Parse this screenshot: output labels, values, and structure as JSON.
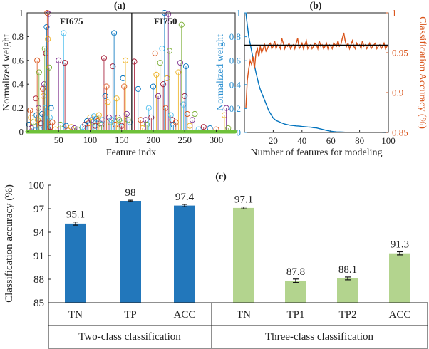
{
  "chart_data": [
    {
      "type": "scatter",
      "panel": "(a)",
      "subtype": "stem",
      "xlabel": "Feature indx",
      "ylabel": "Normalized weight",
      "xlim": [
        0,
        330
      ],
      "ylim": [
        0,
        1
      ],
      "xticks": [
        "50",
        "100",
        "150",
        "200",
        "250",
        "300"
      ],
      "yticks": [
        "0",
        "0.2",
        "0.4",
        "0.6",
        "0.8",
        "1"
      ],
      "divider_x": 166,
      "region_labels": [
        "FI675",
        "FI750"
      ],
      "series_colors": [
        "#0072bd",
        "#d95319",
        "#edb120",
        "#7e2f8e",
        "#77ac30",
        "#4dbeee",
        "#a2142f"
      ],
      "points": [
        [
          3,
          0.06
        ],
        [
          5,
          0.18
        ],
        [
          6,
          0.12
        ],
        [
          7,
          0.03
        ],
        [
          10,
          0.08
        ],
        [
          12,
          0.01
        ],
        [
          14,
          0.28
        ],
        [
          15,
          0.14
        ],
        [
          16,
          0.6
        ],
        [
          17,
          0.1
        ],
        [
          18,
          0.2
        ],
        [
          19,
          0.5
        ],
        [
          20,
          0.02
        ],
        [
          22,
          0.07
        ],
        [
          24,
          0.15
        ],
        [
          25,
          0.36
        ],
        [
          26,
          0.3
        ],
        [
          27,
          0.4
        ],
        [
          28,
          0.7
        ],
        [
          29,
          0.2
        ],
        [
          30,
          0.66
        ],
        [
          31,
          0.88
        ],
        [
          32,
          1.0
        ],
        [
          33,
          0.78
        ],
        [
          34,
          0.99
        ],
        [
          35,
          0.54
        ],
        [
          36,
          0.12
        ],
        [
          37,
          0.04
        ],
        [
          38,
          0.2
        ],
        [
          40,
          0.08
        ],
        [
          45,
          0.02
        ],
        [
          50,
          0.6
        ],
        [
          53,
          0.06
        ],
        [
          58,
          0.83
        ],
        [
          60,
          0.58
        ],
        [
          62,
          0.05
        ],
        [
          65,
          0.01
        ],
        [
          70,
          0.04
        ],
        [
          75,
          0.03
        ],
        [
          80,
          0.02
        ],
        [
          88,
          0.04
        ],
        [
          92,
          0.06
        ],
        [
          95,
          0.09
        ],
        [
          97,
          0.07
        ],
        [
          100,
          0.12
        ],
        [
          102,
          0.1
        ],
        [
          104,
          0.08
        ],
        [
          106,
          0.13
        ],
        [
          108,
          0.05
        ],
        [
          110,
          0.11
        ],
        [
          112,
          0.09
        ],
        [
          114,
          0.14
        ],
        [
          116,
          0.07
        ],
        [
          118,
          0.06
        ],
        [
          120,
          0.1
        ],
        [
          122,
          0.62
        ],
        [
          124,
          0.3
        ],
        [
          126,
          0.38
        ],
        [
          128,
          0.25
        ],
        [
          130,
          0.12
        ],
        [
          132,
          0.08
        ],
        [
          134,
          0.1
        ],
        [
          136,
          0.55
        ],
        [
          138,
          0.83
        ],
        [
          140,
          0.06
        ],
        [
          142,
          0.28
        ],
        [
          144,
          0.12
        ],
        [
          146,
          0.1
        ],
        [
          148,
          0.08
        ],
        [
          150,
          0.05
        ],
        [
          152,
          0.45
        ],
        [
          154,
          0.38
        ],
        [
          156,
          0.6
        ],
        [
          158,
          0.15
        ],
        [
          160,
          0.1
        ],
        [
          163,
          0.08
        ],
        [
          170,
          0.59
        ],
        [
          176,
          0.36
        ],
        [
          180,
          0.1
        ],
        [
          183,
          0.03
        ],
        [
          188,
          0.1
        ],
        [
          190,
          0.06
        ],
        [
          193,
          0.2
        ],
        [
          197,
          0.12
        ],
        [
          200,
          0.38
        ],
        [
          203,
          0.66
        ],
        [
          205,
          0.48
        ],
        [
          208,
          0.3
        ],
        [
          211,
          0.58
        ],
        [
          214,
          0.7
        ],
        [
          216,
          0.4
        ],
        [
          218,
          1.0
        ],
        [
          220,
          0.2
        ],
        [
          222,
          0.45
        ],
        [
          224,
          0.99
        ],
        [
          226,
          0.68
        ],
        [
          228,
          0.14
        ],
        [
          230,
          0.1
        ],
        [
          232,
          0.06
        ],
        [
          236,
          0.08
        ],
        [
          240,
          0.5
        ],
        [
          243,
          0.58
        ],
        [
          245,
          0.9
        ],
        [
          248,
          0.23
        ],
        [
          250,
          0.3
        ],
        [
          252,
          0.55
        ],
        [
          254,
          0.15
        ],
        [
          258,
          0.05
        ],
        [
          262,
          0.1
        ],
        [
          266,
          0.15
        ],
        [
          272,
          0.02
        ],
        [
          280,
          0.04
        ],
        [
          290,
          0.03
        ],
        [
          300,
          0.02
        ],
        [
          313,
          0.14
        ],
        [
          316,
          0.2
        ],
        [
          319,
          0.03
        ]
      ]
    },
    {
      "type": "line",
      "panel": "(b)",
      "xlabel": "Number of features for modeling",
      "ylabel_left": "Normalized weight",
      "ylabel_right": "Classification Accuracy (%)",
      "xlim": [
        0,
        100
      ],
      "ylim_left": [
        0,
        1
      ],
      "ylim_right": [
        0.85,
        1.0
      ],
      "xticks": [
        "20",
        "40",
        "60",
        "80",
        "100"
      ],
      "yticks_left": [
        "0",
        "0.2",
        "0.4",
        "0.6",
        "0.8",
        "1"
      ],
      "yticks_right": [
        "0.85",
        "0.9",
        "0.95",
        "1"
      ],
      "reference_line_left": 0.73,
      "series": [
        {
          "name": "Normalized weight",
          "axis": "left",
          "color": "#0072bd",
          "x": [
            1,
            2,
            3,
            4,
            5,
            6,
            7,
            8,
            9,
            10,
            11,
            12,
            13,
            14,
            15,
            16,
            17,
            18,
            19,
            20,
            22,
            24,
            26,
            28,
            30,
            32,
            34,
            36,
            38,
            40,
            42,
            44,
            46,
            48,
            50,
            52,
            54,
            56,
            58,
            60,
            62,
            64,
            66,
            68,
            70,
            75,
            80,
            85,
            90,
            95,
            100
          ],
          "y": [
            1.0,
            0.9,
            0.8,
            0.74,
            0.68,
            0.62,
            0.56,
            0.5,
            0.45,
            0.4,
            0.36,
            0.33,
            0.3,
            0.27,
            0.24,
            0.21,
            0.18,
            0.16,
            0.14,
            0.12,
            0.1,
            0.09,
            0.08,
            0.07,
            0.065,
            0.06,
            0.058,
            0.055,
            0.053,
            0.05,
            0.048,
            0.046,
            0.044,
            0.04,
            0.038,
            0.032,
            0.026,
            0.02,
            0.014,
            0.01,
            0.007,
            0.005,
            0.004,
            0.003,
            0.002,
            0.002,
            0.001,
            0.001,
            0.001,
            0.001,
            0.0
          ]
        },
        {
          "name": "Classification Accuracy",
          "axis": "right",
          "color": "#d95319",
          "x": [
            1,
            2,
            3,
            4,
            5,
            6,
            7,
            8,
            9,
            10,
            11,
            12,
            13,
            14,
            15,
            16,
            17,
            18,
            19,
            20,
            21,
            22,
            23,
            24,
            25,
            26,
            27,
            28,
            29,
            30,
            31,
            32,
            33,
            34,
            35,
            36,
            37,
            38,
            39,
            40,
            41,
            42,
            43,
            44,
            45,
            46,
            47,
            48,
            49,
            50,
            51,
            52,
            53,
            54,
            55,
            56,
            57,
            58,
            59,
            60,
            61,
            62,
            63,
            64,
            65,
            66,
            67,
            68,
            69,
            70,
            71,
            72,
            73,
            74,
            75,
            76,
            77,
            78,
            79,
            80,
            81,
            82,
            83,
            84,
            85,
            86,
            87,
            88,
            89,
            90,
            91,
            92,
            93,
            94,
            95,
            96,
            97,
            98,
            99,
            100
          ],
          "y": [
            0.88,
            0.915,
            0.93,
            0.94,
            0.935,
            0.945,
            0.93,
            0.95,
            0.955,
            0.945,
            0.958,
            0.95,
            0.955,
            0.96,
            0.952,
            0.955,
            0.96,
            0.962,
            0.955,
            0.958,
            0.965,
            0.955,
            0.96,
            0.958,
            0.955,
            0.968,
            0.962,
            0.955,
            0.96,
            0.958,
            0.962,
            0.955,
            0.958,
            0.96,
            0.955,
            0.962,
            0.968,
            0.955,
            0.958,
            0.962,
            0.955,
            0.96,
            0.965,
            0.955,
            0.958,
            0.96,
            0.955,
            0.958,
            0.962,
            0.96,
            0.955,
            0.965,
            0.958,
            0.96,
            0.955,
            0.958,
            0.962,
            0.955,
            0.96,
            0.958,
            0.955,
            0.962,
            0.96,
            0.958,
            0.965,
            0.958,
            0.96,
            0.968,
            0.975,
            0.965,
            0.958,
            0.962,
            0.955,
            0.96,
            0.965,
            0.958,
            0.955,
            0.962,
            0.958,
            0.96,
            0.955,
            0.965,
            0.958,
            0.96,
            0.955,
            0.958,
            0.962,
            0.955,
            0.958,
            0.96,
            0.962,
            0.955,
            0.958,
            0.96,
            0.955,
            0.958,
            0.962,
            0.955,
            0.958,
            0.96
          ]
        }
      ]
    },
    {
      "type": "bar",
      "panel": "(c)",
      "ylabel": "Classification accuracy (%)",
      "ylim": [
        85,
        100
      ],
      "yticks": [
        "85",
        "88",
        "91",
        "94",
        "97",
        "100"
      ],
      "categories": [
        "TN",
        "TP",
        "ACC",
        "TN",
        "TP1",
        "TP2",
        "ACC"
      ],
      "values": [
        95.1,
        98,
        97.4,
        97.1,
        87.8,
        88.1,
        91.3
      ],
      "value_labels": [
        "95.1",
        "98",
        "97.4",
        "97.1",
        "87.8",
        "88.1",
        "91.3"
      ],
      "errors": [
        0.2,
        0.08,
        0.15,
        0.12,
        0.22,
        0.18,
        0.2
      ],
      "groups": [
        {
          "label": "Two-class classification",
          "bar_count": 3,
          "color": "#2277bb"
        },
        {
          "label": "Three-class classification",
          "bar_count": 4,
          "color": "#b3d48e"
        }
      ]
    }
  ]
}
